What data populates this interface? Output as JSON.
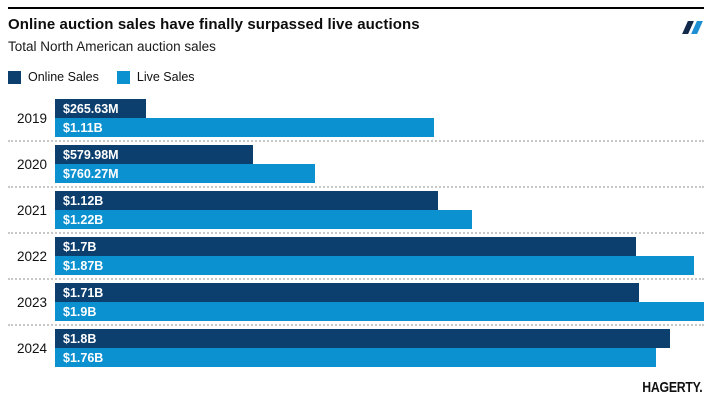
{
  "header": {
    "title": "Online auction sales have finally surpassed live auctions",
    "subtitle": "Total North American auction sales"
  },
  "legend": [
    {
      "label": "Online Sales",
      "color": "#0d3f6e"
    },
    {
      "label": "Live Sales",
      "color": "#0b90d0"
    }
  ],
  "colors": {
    "online_bar": "#0d3f6e",
    "live_bar": "#0b90d0",
    "separator": "#c8c8c8",
    "top_rule": "#000000",
    "logo_slash_dark": "#12294a",
    "logo_slash_blue": "#1e8fd2"
  },
  "footer": {
    "brand": "HAGERTY."
  },
  "chart_data": {
    "type": "bar",
    "orientation": "horizontal",
    "title": "Online auction sales have finally surpassed live auctions",
    "subtitle": "Total North American auction sales",
    "legend_position": "top-left",
    "grid": false,
    "categories": [
      "2019",
      "2020",
      "2021",
      "2022",
      "2023",
      "2024"
    ],
    "xmax_musd": 1900,
    "series": [
      {
        "name": "Online Sales",
        "color": "#0d3f6e",
        "values_musd": [
          265.63,
          579.98,
          1120,
          1700,
          1710,
          1800
        ],
        "labels": [
          "$265.63M",
          "$579.98M",
          "$1.12B",
          "$1.7B",
          "$1.71B",
          "$1.8B"
        ]
      },
      {
        "name": "Live Sales",
        "color": "#0b90d0",
        "values_musd": [
          1110,
          760.27,
          1220,
          1870,
          1900,
          1760
        ],
        "labels": [
          "$1.11B",
          "$760.27M",
          "$1.22B",
          "$1.87B",
          "$1.9B",
          "$1.76B"
        ]
      }
    ]
  }
}
